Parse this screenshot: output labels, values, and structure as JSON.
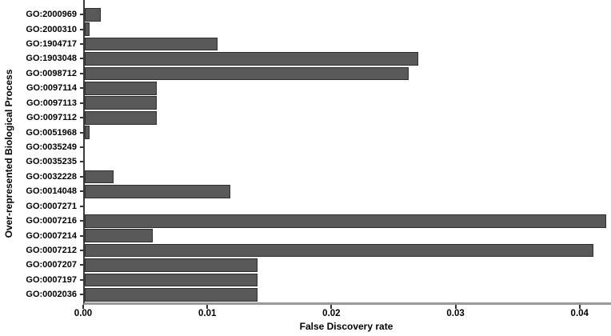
{
  "chart_data": {
    "type": "bar",
    "orientation": "horizontal",
    "title": "",
    "xlabel": "False Discovery rate",
    "ylabel": "Over-represented Biological Process",
    "categories": [
      "GO:2000969",
      "GO:2000310",
      "GO:1904717",
      "GO:1903048",
      "GO:0098712",
      "GO:0097114",
      "GO:0097113",
      "GO:0097112",
      "GO:0051968",
      "GO:0035249",
      "GO:0035235",
      "GO:0032228",
      "GO:0014048",
      "GO:0007271",
      "GO:0007216",
      "GO:0007214",
      "GO:0007212",
      "GO:0007207",
      "GO:0007197",
      "GO:0002036"
    ],
    "values": [
      0.0013,
      0.0004,
      0.0107,
      0.0269,
      0.0261,
      0.0058,
      0.0058,
      0.0058,
      0.0004,
      0,
      0,
      0.0023,
      0.0117,
      0,
      0.042,
      0.0055,
      0.041,
      0.0139,
      0.0139,
      0.0139
    ],
    "xlim": [
      0,
      0.0424
    ],
    "xticks": {
      "values": [
        0,
        0.01,
        0.02,
        0.03,
        0.04
      ],
      "labels": [
        "0.00",
        "0.01",
        "0.02",
        "0.03",
        "0.04"
      ]
    },
    "grid": false,
    "legend": null,
    "colors": {
      "bar_fill": "#595959",
      "bar_border": "#2e2e2e",
      "y_axis_line": "#3c3c3c",
      "x_axis_line": "#9a9a9a",
      "tick_mark": "#333333",
      "text": "#000000",
      "background": "#ffffff"
    }
  }
}
